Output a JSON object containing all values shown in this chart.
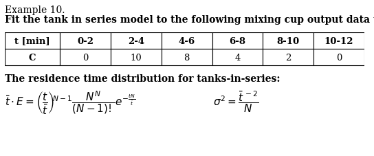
{
  "title_line1": "Example 10.",
  "title_line2": "Fit the tank in series model to the following mixing cup output data to a pulse input.",
  "table_headers": [
    "t [min]",
    "0-2",
    "2-4",
    "4-6",
    "6-8",
    "8-10",
    "10-12"
  ],
  "table_row_label": "C",
  "table_values": [
    "0",
    "10",
    "8",
    "4",
    "2",
    "0"
  ],
  "subtitle": "The residence time distribution for tanks-in-series:",
  "bg_color": "#ffffff",
  "text_color": "#000000",
  "fig_width": 5.44,
  "fig_height": 2.28,
  "dpi": 100
}
